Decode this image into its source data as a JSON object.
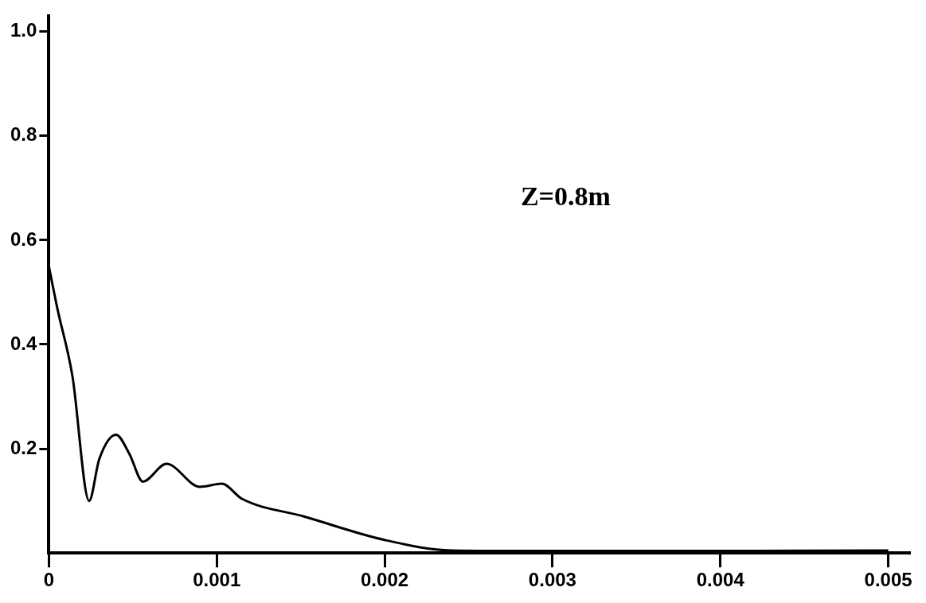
{
  "chart_data": {
    "type": "line",
    "annotations": [
      "Z=0.8m"
    ],
    "x": [
      0,
      5e-05,
      0.00014,
      0.00024,
      0.0003,
      0.0004,
      0.00048,
      0.00056,
      0.0007,
      0.0009,
      0.00103,
      0.00115,
      0.00152,
      0.002,
      0.0024,
      0.003,
      0.004,
      0.005
    ],
    "series": [
      {
        "color": "#000000",
        "values": [
          0.55,
          0.47,
          0.34,
          0.1,
          0.18,
          0.227,
          0.19,
          0.137,
          0.171,
          0.127,
          0.133,
          0.104,
          0.07,
          0.025,
          0.005,
          0.004,
          0.004,
          0.005
        ]
      }
    ],
    "xlim": [
      0,
      0.00513
    ],
    "xticks": [
      0,
      0.001,
      0.002,
      0.003,
      0.004,
      0.005
    ],
    "ylim": [
      0,
      1.03
    ],
    "yticks": [
      0.2,
      0.4,
      0.6,
      0.8,
      {
        "value": 1,
        "label": "1.0"
      }
    ],
    "grid": false,
    "legend": false,
    "marker": "none",
    "line_style": "solid"
  }
}
